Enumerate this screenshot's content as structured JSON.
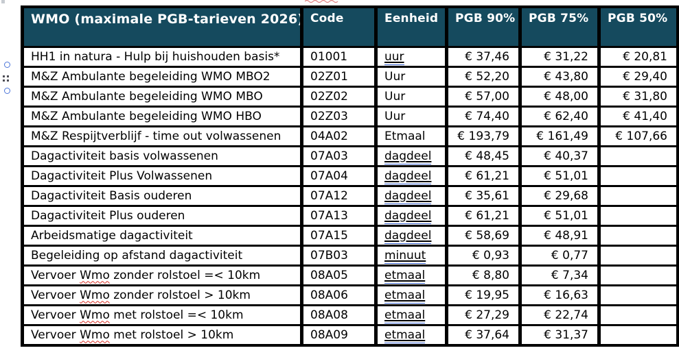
{
  "accent_colors": {
    "header_bg": "#154a5e",
    "header_text": "#ffffff",
    "border": "#000000",
    "suggestion_underline": "#3a63d0",
    "spellcheck_red": "#d93025",
    "handle_blue": "#4a74d8"
  },
  "margin_icons": [
    {
      "type": "anchor-circle"
    },
    {
      "type": "drag-handle-dots"
    },
    {
      "type": "anchor-circle"
    }
  ],
  "table": {
    "headers": [
      "WMO (maximale PGB-tarieven 2026)",
      "Code",
      "Eenheid",
      "PGB 90%",
      "PGB 75%",
      "PGB 50%"
    ],
    "rows": [
      {
        "name": "HH1 in natura - Hulp bij huishouden basis*",
        "code": "01001",
        "eenheid": "uur",
        "unit_suggestion": true,
        "pgb90": "€ 37,46",
        "pgb75": "€ 31,22",
        "pgb50": "€ 20,81"
      },
      {
        "name": "M&Z Ambulante begeleiding WMO MBO2",
        "code": "02Z01",
        "eenheid": "Uur",
        "unit_suggestion": false,
        "pgb90": "€ 52,20",
        "pgb75": "€ 43,80",
        "pgb50": "€ 29,40"
      },
      {
        "name": "M&Z Ambulante begeleiding WMO MBO",
        "code": "02Z02",
        "eenheid": "Uur",
        "unit_suggestion": false,
        "pgb90": "€ 57,00",
        "pgb75": "€ 48,00",
        "pgb50": "€ 31,80"
      },
      {
        "name": "M&Z Ambulante begeleiding WMO HBO",
        "code": "02Z03",
        "eenheid": "Uur",
        "unit_suggestion": false,
        "pgb90": "€ 74,40",
        "pgb75": "€ 62,40",
        "pgb50": "€ 41,40"
      },
      {
        "name": "M&Z Respijtverblijf - time out volwassenen",
        "code": "04A02",
        "eenheid": "Etmaal",
        "unit_suggestion": false,
        "pgb90": "€ 193,79",
        "pgb75": "€ 161,49",
        "pgb50": "€ 107,66"
      },
      {
        "name": "Dagactiviteit basis volwassenen",
        "code": "07A03",
        "eenheid": "dagdeel",
        "unit_suggestion": true,
        "pgb90": "€ 48,45",
        "pgb75": "€ 40,37",
        "pgb50": ""
      },
      {
        "name": "Dagactiviteit Plus Volwassenen",
        "code": "07A04",
        "eenheid": "dagdeel",
        "unit_suggestion": true,
        "pgb90": "€ 61,21",
        "pgb75": "€ 51,01",
        "pgb50": ""
      },
      {
        "name": "Dagactiviteit Basis ouderen",
        "code": "07A12",
        "eenheid": "dagdeel",
        "unit_suggestion": true,
        "pgb90": "€ 35,61",
        "pgb75": "€ 29,68",
        "pgb50": ""
      },
      {
        "name": "Dagactiviteit Plus ouderen",
        "code": "07A13",
        "eenheid": "dagdeel",
        "unit_suggestion": true,
        "pgb90": "€ 61,21",
        "pgb75": "€ 51,01",
        "pgb50": ""
      },
      {
        "name": "Arbeidsmatige dagactiviteit",
        "code": "07A15",
        "eenheid": "dagdeel",
        "unit_suggestion": true,
        "pgb90": "€ 58,69",
        "pgb75": "€ 48,91",
        "pgb50": ""
      },
      {
        "name": "Begeleiding op afstand dagactiviteit",
        "code": "07B03",
        "eenheid": "minuut",
        "unit_suggestion": true,
        "pgb90": "€ 0,93",
        "pgb75": "€ 0,77",
        "pgb50": ""
      },
      {
        "name": "Vervoer Wmo zonder rolstoel =< 10km",
        "code": "08A05",
        "eenheid": "etmaal",
        "unit_suggestion": true,
        "pgb90": "€ 8,80",
        "pgb75": "€ 7,34",
        "pgb50": "",
        "spellcheck_word": "Wmo"
      },
      {
        "name": "Vervoer Wmo zonder rolstoel > 10km",
        "code": "08A06",
        "eenheid": "etmaal",
        "unit_suggestion": true,
        "pgb90": "€ 19,95",
        "pgb75": "€ 16,63",
        "pgb50": "",
        "spellcheck_word": "Wmo"
      },
      {
        "name": "Vervoer Wmo met rolstoel =< 10km",
        "code": "08A08",
        "eenheid": "etmaal",
        "unit_suggestion": true,
        "pgb90": "€ 27,29",
        "pgb75": "€ 22,74",
        "pgb50": "",
        "spellcheck_word": "Wmo"
      },
      {
        "name": "Vervoer Wmo met rolstoel > 10km",
        "code": "08A09",
        "eenheid": "etmaal",
        "unit_suggestion": true,
        "pgb90": "€ 37,64",
        "pgb75": "€ 31,37",
        "pgb50": "",
        "spellcheck_word": "Wmo"
      }
    ]
  }
}
